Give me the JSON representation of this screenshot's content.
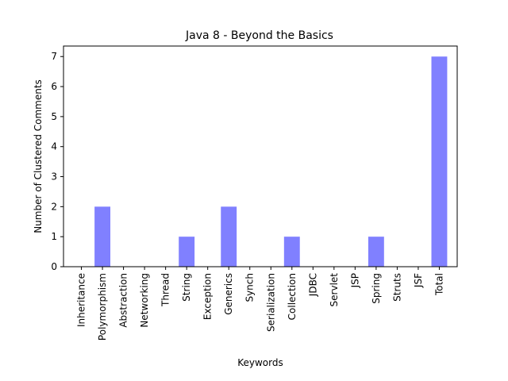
{
  "chart_data": {
    "type": "bar",
    "title": "Java 8 - Beyond the Basics",
    "xlabel": "Keywords",
    "ylabel": "Number of Clustered Comments",
    "categories": [
      "Inheritance",
      "Polymorphism",
      "Abstraction",
      "Networking",
      "Thread",
      "String",
      "Exception",
      "Generics",
      "Synch",
      "Serialization",
      "Collection",
      "JDBC",
      "Servlet",
      "JSP",
      "Spring",
      "Struts",
      "JSF",
      "Total"
    ],
    "values": [
      0,
      2,
      0,
      0,
      0,
      1,
      0,
      2,
      0,
      0,
      1,
      0,
      0,
      0,
      1,
      0,
      0,
      7
    ],
    "ylim": [
      0,
      7.35
    ],
    "yticks": [
      0,
      1,
      2,
      3,
      4,
      5,
      6,
      7
    ],
    "bar_color": "#8080ff",
    "grid": false
  }
}
